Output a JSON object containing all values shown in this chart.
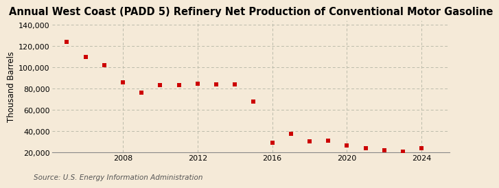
{
  "title": "Annual West Coast (PADD 5) Refinery Net Production of Conventional Motor Gasoline",
  "ylabel": "Thousand Barrels",
  "source": "Source: U.S. Energy Information Administration",
  "background_color": "#f5ead8",
  "plot_background_color": "#f5ead8",
  "marker_color": "#cc0000",
  "years": [
    2005,
    2006,
    2007,
    2008,
    2009,
    2010,
    2011,
    2012,
    2013,
    2014,
    2015,
    2016,
    2017,
    2018,
    2019,
    2020,
    2021,
    2022,
    2023,
    2024
  ],
  "values": [
    124000,
    110000,
    102000,
    86000,
    76000,
    83500,
    83500,
    84500,
    84000,
    84000,
    68000,
    29000,
    38000,
    30500,
    31000,
    26500,
    24000,
    22500,
    21000,
    24000
  ],
  "ylim": [
    20000,
    144000
  ],
  "yticks": [
    20000,
    40000,
    60000,
    80000,
    100000,
    120000,
    140000
  ],
  "xlim": [
    2004.2,
    2025.5
  ],
  "xticks": [
    2008,
    2012,
    2016,
    2020,
    2024
  ],
  "grid_color": "#bbbbaa",
  "title_fontsize": 10.5,
  "label_fontsize": 8.5,
  "tick_fontsize": 8,
  "source_fontsize": 7.5
}
